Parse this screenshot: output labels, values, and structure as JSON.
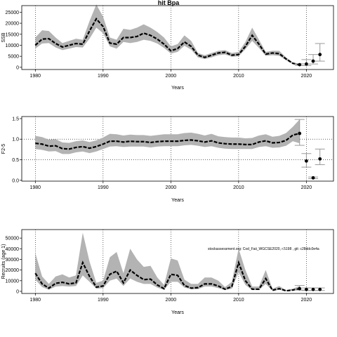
{
  "chart_data": [
    {
      "type": "line",
      "title": "hit Bpa",
      "xlabel": "Years",
      "ylabel": "SSB",
      "xlim": [
        1978,
        2024
      ],
      "ylim": [
        -1000,
        28000
      ],
      "xticks": [
        1980,
        1990,
        2000,
        2010,
        2020
      ],
      "yticks": [
        0,
        5000,
        10000,
        15000,
        20000,
        25000
      ],
      "grid": "vertical dotted at 1980, 1990, 2000, 2010, 2020",
      "x": [
        1980,
        1981,
        1982,
        1983,
        1984,
        1985,
        1986,
        1987,
        1988,
        1989,
        1990,
        1991,
        1992,
        1993,
        1994,
        1995,
        1996,
        1997,
        1998,
        1999,
        2000,
        2001,
        2002,
        2003,
        2004,
        2005,
        2006,
        2007,
        2008,
        2009,
        2010,
        2011,
        2012,
        2013,
        2014,
        2015,
        2016,
        2017,
        2018,
        2019
      ],
      "estimate": [
        10000,
        12800,
        13000,
        10800,
        9200,
        10000,
        10800,
        10500,
        16500,
        22000,
        18500,
        11000,
        10500,
        13500,
        13500,
        14000,
        15500,
        14500,
        12800,
        10500,
        7500,
        8500,
        11500,
        9500,
        5500,
        4500,
        5500,
        6500,
        6800,
        5500,
        5800,
        9500,
        14500,
        10500,
        6000,
        6500,
        6200,
        3800,
        1800,
        1200
      ],
      "lower": [
        8500,
        10800,
        11000,
        9000,
        7800,
        8500,
        9200,
        9000,
        13000,
        18000,
        15500,
        9500,
        8500,
        11500,
        11000,
        11500,
        12500,
        12000,
        10800,
        8800,
        6200,
        7000,
        9800,
        8000,
        4500,
        3800,
        4500,
        5500,
        5800,
        4800,
        5000,
        8200,
        12000,
        8800,
        5200,
        5500,
        5200,
        3200,
        1500,
        1000
      ],
      "upper": [
        13500,
        16800,
        16500,
        13500,
        11000,
        12000,
        13000,
        12500,
        21000,
        28500,
        23000,
        13500,
        12500,
        17500,
        17000,
        18000,
        19500,
        18000,
        16000,
        13500,
        9500,
        10500,
        14500,
        12000,
        6500,
        5500,
        6500,
        7500,
        7800,
        6500,
        7000,
        11500,
        18000,
        12500,
        7000,
        7500,
        7500,
        4500,
        2200,
        1500
      ],
      "projection": {
        "x": [
          2019,
          2020,
          2021,
          2022
        ],
        "values": [
          1200,
          1500,
          2800,
          5800
        ],
        "lower": [
          900,
          800,
          1500,
          2800
        ],
        "upper": [
          1600,
          3500,
          5800,
          10800
        ]
      }
    },
    {
      "type": "line",
      "title": "",
      "xlabel": "Years",
      "ylabel": "F2-5",
      "xlim": [
        1978,
        2024
      ],
      "ylim": [
        -0.02,
        1.55
      ],
      "xticks": [
        1980,
        1990,
        2000,
        2010,
        2020
      ],
      "yticks": [
        "0.0",
        "0.5",
        "1.0",
        "1.5"
      ],
      "ytick_values": [
        0,
        0.5,
        1.0,
        1.5
      ],
      "grid": "vertical dotted at 1980, 1990, 2000, 2010, 2020; horizontal dotted at 0.5 and 1.0",
      "x": [
        1980,
        1981,
        1982,
        1983,
        1984,
        1985,
        1986,
        1987,
        1988,
        1989,
        1990,
        1991,
        1992,
        1993,
        1994,
        1995,
        1996,
        1997,
        1998,
        1999,
        2000,
        2001,
        2002,
        2003,
        2004,
        2005,
        2006,
        2007,
        2008,
        2009,
        2010,
        2011,
        2012,
        2013,
        2014,
        2015,
        2016,
        2017,
        2018,
        2019
      ],
      "estimate": [
        0.9,
        0.88,
        0.83,
        0.84,
        0.77,
        0.76,
        0.8,
        0.82,
        0.78,
        0.82,
        0.88,
        0.95,
        0.95,
        0.93,
        0.95,
        0.94,
        0.94,
        0.92,
        0.94,
        0.95,
        0.95,
        0.95,
        0.97,
        0.98,
        0.96,
        0.93,
        0.96,
        0.91,
        0.89,
        0.88,
        0.88,
        0.87,
        0.87,
        0.93,
        0.96,
        0.91,
        0.92,
        0.97,
        1.1,
        1.14
      ],
      "lower": [
        0.76,
        0.74,
        0.7,
        0.71,
        0.64,
        0.64,
        0.68,
        0.7,
        0.66,
        0.7,
        0.76,
        0.82,
        0.83,
        0.81,
        0.82,
        0.82,
        0.82,
        0.8,
        0.82,
        0.83,
        0.83,
        0.83,
        0.85,
        0.86,
        0.84,
        0.81,
        0.83,
        0.79,
        0.77,
        0.76,
        0.76,
        0.76,
        0.76,
        0.81,
        0.83,
        0.79,
        0.8,
        0.84,
        0.95,
        0.9
      ],
      "upper": [
        1.08,
        1.05,
        0.99,
        1.0,
        0.92,
        0.91,
        0.95,
        0.97,
        0.93,
        0.97,
        1.04,
        1.13,
        1.12,
        1.09,
        1.11,
        1.1,
        1.1,
        1.08,
        1.1,
        1.12,
        1.12,
        1.12,
        1.15,
        1.16,
        1.13,
        1.09,
        1.13,
        1.07,
        1.05,
        1.04,
        1.04,
        1.02,
        1.03,
        1.09,
        1.12,
        1.06,
        1.08,
        1.15,
        1.3,
        1.48
      ],
      "projection": {
        "x": [
          2019,
          2020,
          2021,
          2022
        ],
        "values": [
          1.14,
          0.47,
          0.06,
          0.52
        ],
        "lower": [
          0.85,
          0.32,
          0.04,
          0.38
        ],
        "upper": [
          1.48,
          0.65,
          0.08,
          0.76
        ]
      }
    },
    {
      "type": "line",
      "title": "",
      "xlabel": "Years",
      "ylabel": "Recruits (age 1)",
      "xlim": [
        1978,
        2024
      ],
      "ylim": [
        -2000,
        58000
      ],
      "xticks": [
        1980,
        1990,
        2000,
        2010,
        2020
      ],
      "yticks": [
        0,
        10000,
        20000,
        30000,
        40000,
        50000
      ],
      "grid": "vertical dotted at 1980, 1990, 2000, 2010, 2020",
      "annotation": "stockassessment.org: Cod_Faii_WGCSE2020, r.5198 , git: c28ddc0e4a",
      "x": [
        1980,
        1981,
        1982,
        1983,
        1984,
        1985,
        1986,
        1987,
        1988,
        1989,
        1990,
        1991,
        1992,
        1993,
        1994,
        1995,
        1996,
        1997,
        1998,
        1999,
        2000,
        2001,
        2002,
        2003,
        2004,
        2005,
        2006,
        2007,
        2008,
        2009,
        2010,
        2011,
        2012,
        2013,
        2014,
        2015,
        2016,
        2017,
        2018,
        2019
      ],
      "estimate": [
        17000,
        7000,
        3000,
        7500,
        8500,
        7000,
        8000,
        27000,
        14000,
        4000,
        5000,
        16000,
        19000,
        8000,
        20000,
        15000,
        11000,
        11500,
        6000,
        2500,
        16000,
        15000,
        5500,
        3000,
        3500,
        7000,
        7000,
        5000,
        2000,
        4500,
        27000,
        10000,
        2000,
        2000,
        12000,
        1000,
        2500,
        500,
        1200,
        2500
      ],
      "lower": [
        11000,
        4000,
        1500,
        4500,
        5000,
        4500,
        5000,
        15000,
        9000,
        2500,
        3000,
        10000,
        12000,
        5000,
        12000,
        9000,
        7000,
        7000,
        3500,
        1500,
        9000,
        9000,
        3500,
        2000,
        2000,
        4500,
        4500,
        3000,
        1200,
        2500,
        18000,
        6000,
        1200,
        1200,
        7000,
        500,
        1500,
        300,
        800,
        1500
      ],
      "upper": [
        36000,
        14000,
        7000,
        14000,
        16000,
        13000,
        15000,
        55000,
        28000,
        8000,
        10000,
        32000,
        37000,
        17000,
        40000,
        30000,
        23000,
        24000,
        13000,
        6000,
        31000,
        29000,
        11000,
        7000,
        7000,
        13000,
        13000,
        10000,
        4000,
        9000,
        40000,
        20000,
        4500,
        4500,
        20000,
        2500,
        5000,
        1000,
        2500,
        5000
      ],
      "projection": {
        "x": [
          2019,
          2020,
          2021,
          2022
        ],
        "values": [
          2500,
          1800,
          1800,
          1800
        ],
        "lower": [
          1200,
          800,
          800,
          800
        ],
        "upper": [
          5500,
          3200,
          3200,
          3200
        ]
      }
    }
  ]
}
